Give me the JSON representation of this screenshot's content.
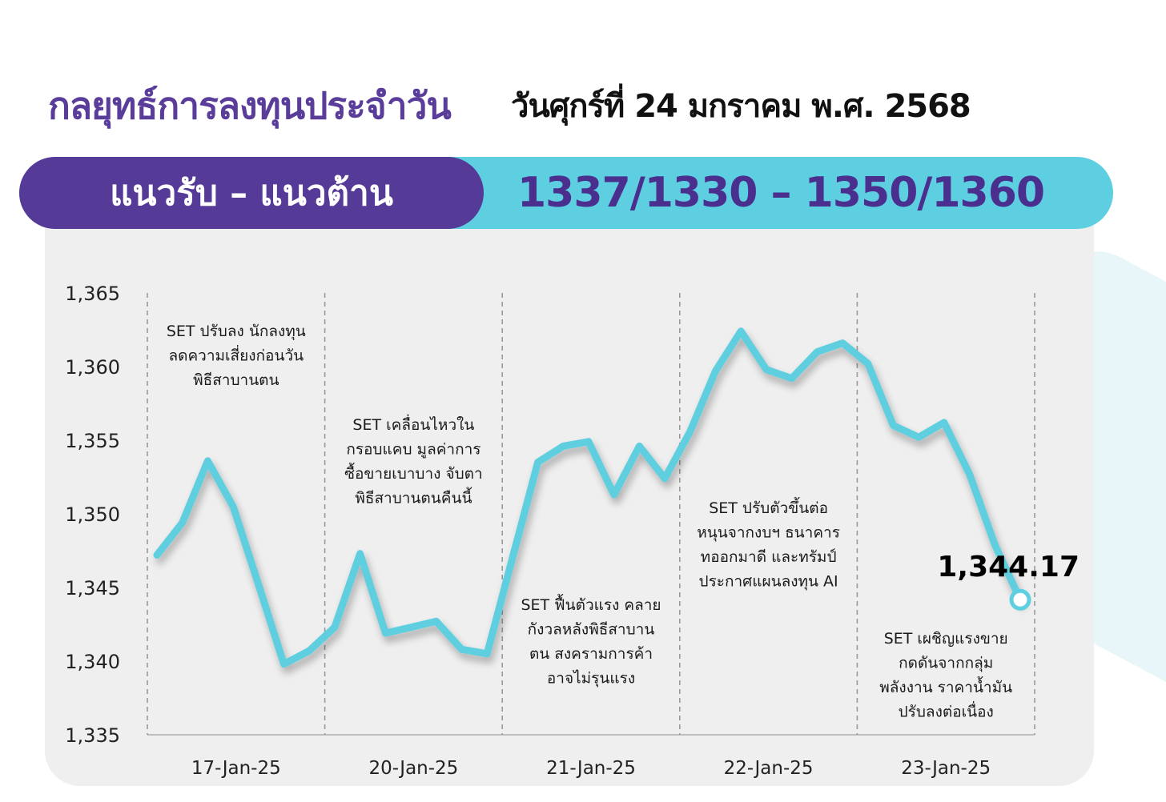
{
  "header": {
    "title": "กลยุทธ์การลงทุนประจำวัน",
    "date": "วันศุกร์ที่ 24 มกราคม พ.ศ. 2568"
  },
  "band": {
    "label": "แนวรับ – แนวต้าน",
    "levels": "1337/1330 – 1350/1360"
  },
  "colors": {
    "brand_purple": "#553a98",
    "accent_cyan": "#5ecfe0",
    "panel_gray": "#efefef"
  },
  "chart_data": {
    "type": "line",
    "title": "",
    "xlabel": "",
    "ylabel": "",
    "ylim": [
      1335,
      1365
    ],
    "yticks": [
      1335,
      1340,
      1345,
      1350,
      1355,
      1360,
      1365
    ],
    "ytick_labels": [
      "1,335",
      "1,340",
      "1,345",
      "1,350",
      "1,355",
      "1,360",
      "1,365"
    ],
    "grid": "vertical dashed separators between days",
    "days": [
      "17-Jan-25",
      "20-Jan-25",
      "21-Jan-25",
      "22-Jan-25",
      "23-Jan-25"
    ],
    "series": [
      {
        "values": [
          1347.2,
          1349.4,
          1353.6,
          1350.5,
          1345.2,
          1339.8,
          1340.7,
          1342.3,
          1347.3,
          1341.9,
          1342.3,
          1342.7,
          1340.8,
          1340.5,
          1347.0,
          1353.5,
          1354.6,
          1354.9,
          1351.3,
          1354.6,
          1352.4,
          1355.6,
          1359.7,
          1362.4,
          1359.8,
          1359.2,
          1361.0,
          1361.6,
          1360.2,
          1356.0,
          1355.2,
          1356.2,
          1352.7,
          1347.9,
          1344.17
        ]
      }
    ],
    "last_value_label": "1,344.17",
    "annotations": [
      {
        "day": "17-Jan-25",
        "lines": [
          "SET ปรับลง นักลงทุน",
          "ลดความเสี่ยงก่อนวัน",
          "พิธีสาบานตน"
        ]
      },
      {
        "day": "20-Jan-25",
        "lines": [
          "SET เคลื่อนไหวใน",
          "กรอบแคบ มูลค่าการ",
          "ซื้อขายเบาบาง จับตา",
          "พิธีสาบานตนคืนนี้"
        ]
      },
      {
        "day": "21-Jan-25",
        "lines": [
          "SET ฟื้นตัวแรง คลาย",
          "กังวลหลังพิธีสาบาน",
          "ตน สงครามการค้า",
          "อาจไม่รุนแรง"
        ]
      },
      {
        "day": "22-Jan-25",
        "lines": [
          "SET ปรับตัวขึ้นต่อ",
          "หนุนจากงบฯ ธนาคาร",
          "ทออกมาดี และทรัมป์",
          "ประกาศแผนลงทุน AI"
        ]
      },
      {
        "day": "23-Jan-25",
        "lines": [
          "SET เผชิญแรงขาย",
          "กดดันจากกลุ่ม",
          "พลังงาน ราคาน้ำมัน",
          "ปรับลงต่อเนื่อง"
        ]
      }
    ]
  }
}
